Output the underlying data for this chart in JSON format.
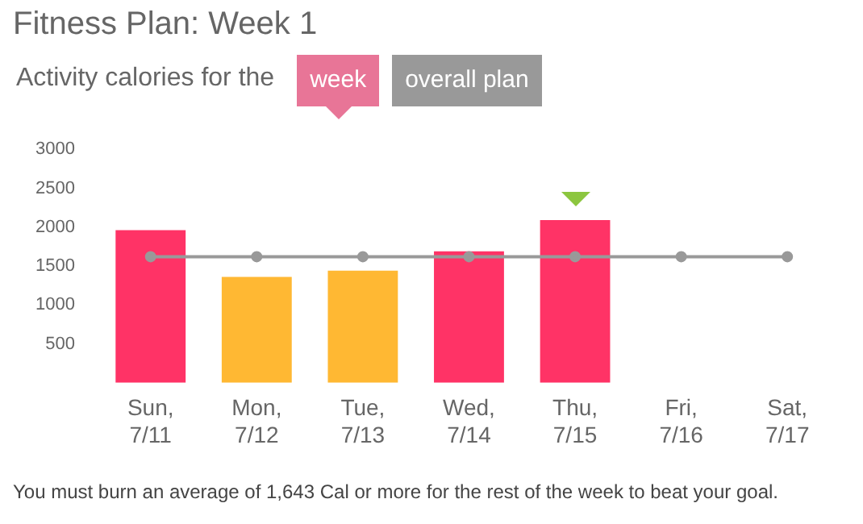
{
  "chart_data": {
    "type": "bar",
    "title": "Fitness Plan: Week 1",
    "subtitle": "Activity calories for the",
    "categories": [
      "Sun, 7/11",
      "Mon, 7/12",
      "Tue, 7/13",
      "Wed, 7/14",
      "Thu, 7/15",
      "Fri, 7/16",
      "Sat, 7/17"
    ],
    "series": [
      {
        "colors": [
          "#ff3366",
          "#ffb833",
          "#ffb833",
          "#ff3366",
          "#ff3366",
          "#ff3366",
          "#ff3366"
        ],
        "values": [
          1960,
          1360,
          1440,
          1690,
          2090,
          null,
          null
        ]
      },
      {
        "type": "line",
        "color": "#999999",
        "marker": "circle",
        "values": [
          1620,
          1620,
          1620,
          1620,
          1620,
          1620,
          1620
        ]
      }
    ],
    "ylim": [
      0,
      3000
    ],
    "yticks": [
      500,
      1000,
      1500,
      2000,
      2500,
      3000
    ],
    "grid": false,
    "legend": false,
    "annotations": [
      "week",
      "overall plan",
      "You must burn an average of 1,643 Cal or more for the rest of the week to beat your goal."
    ]
  }
}
